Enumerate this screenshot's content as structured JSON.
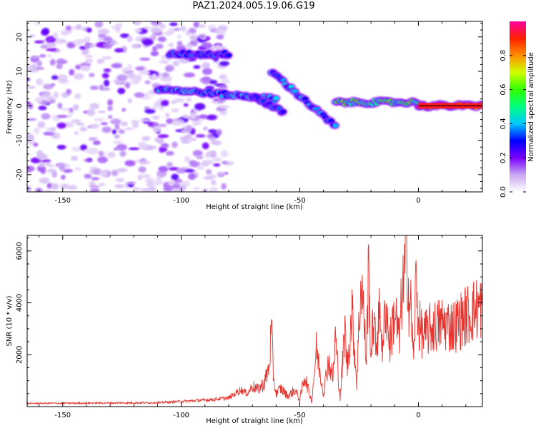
{
  "title": "PAZ1.2024.005.19.06.G19",
  "chart_data": [
    {
      "type": "heatmap",
      "xlabel": "Height of straight line (km)",
      "ylabel": "Frequency (Hz)",
      "xlim": [
        -165,
        27
      ],
      "ylim": [
        -25,
        24.5
      ],
      "xticks": [
        -150,
        -100,
        -50,
        0
      ],
      "yticks": [
        -20,
        -10,
        0,
        10,
        20
      ],
      "colorbar": {
        "label": "Normalized spectral amplitude",
        "range": [
          0.0,
          1.0
        ],
        "ticks": [
          0.0,
          0.2,
          0.4,
          0.6,
          0.8
        ],
        "colormap": [
          "#ffffff",
          "#c9a8f2",
          "#7a00ff",
          "#0000ff",
          "#00c8ff",
          "#00ff80",
          "#30ff00",
          "#d0ff00",
          "#ff9000",
          "#ff2000",
          "#ff00a0"
        ]
      },
      "features": [
        {
          "name": "noise band",
          "x": [
            -165,
            -80
          ],
          "y": [
            -25,
            24.5
          ],
          "amplitude": 0.1
        },
        {
          "name": "upper branch",
          "x": [
            -105,
            -80
          ],
          "y": [
            15,
            15
          ],
          "amplitude": 0.3
        },
        {
          "name": "main ridge",
          "x": [
            -110,
            -60
          ],
          "y": [
            5,
            2
          ],
          "amplitude": 0.35
        },
        {
          "name": "descending branch 1",
          "x": [
            -70,
            -57
          ],
          "y": [
            3,
            -2
          ],
          "amplitude": 0.3
        },
        {
          "name": "descending branch 2",
          "x": [
            -62,
            -35
          ],
          "y": [
            10,
            -6
          ],
          "amplitude": 0.35
        },
        {
          "name": "converging ridge",
          "x": [
            -35,
            0
          ],
          "y": [
            1,
            1
          ],
          "amplitude": 0.5
        },
        {
          "name": "strong ridge",
          "x": [
            0,
            27
          ],
          "y": [
            0,
            0
          ],
          "amplitude": 1.0
        }
      ]
    },
    {
      "type": "line",
      "xlabel": "Height of straight line (km)",
      "ylabel": "SNR (10 * v/v)",
      "xlim": [
        -165,
        27
      ],
      "ylim": [
        0,
        6600
      ],
      "xticks": [
        -150,
        -100,
        -50,
        0
      ],
      "yticks": [
        2000,
        4000,
        6000
      ],
      "color": "#e8342e",
      "series": [
        {
          "x": [
            -165,
            -150,
            -130,
            -110,
            -100,
            -90,
            -80,
            -75,
            -72,
            -70,
            -68,
            -65,
            -63,
            -62,
            -61,
            -60,
            -58,
            -55,
            -52,
            -50,
            -48,
            -45,
            -43,
            -40,
            -38,
            -36,
            -35,
            -33,
            -31,
            -30,
            -28,
            -26,
            -25,
            -24,
            -22,
            -21,
            -20,
            -19,
            -18,
            -16,
            -15,
            -14,
            -12,
            -10,
            -8,
            -7,
            -6,
            -5,
            -4,
            -3,
            -2,
            -1,
            0,
            2,
            5,
            10,
            15,
            20,
            25,
            27
          ],
          "y": [
            120,
            130,
            140,
            150,
            200,
            250,
            330,
            650,
            500,
            800,
            650,
            900,
            1500,
            2950,
            1000,
            500,
            700,
            400,
            650,
            250,
            1200,
            200,
            2200,
            500,
            1800,
            1100,
            2700,
            300,
            3000,
            1500,
            3700,
            900,
            3300,
            5000,
            1800,
            5350,
            1900,
            3500,
            2300,
            3800,
            1900,
            4100,
            2400,
            3700,
            2500,
            4300,
            4800,
            6550,
            4100,
            3700,
            1700,
            5000,
            3200,
            2700,
            3000,
            3200,
            3100,
            3500,
            3800,
            3900
          ]
        }
      ]
    }
  ]
}
